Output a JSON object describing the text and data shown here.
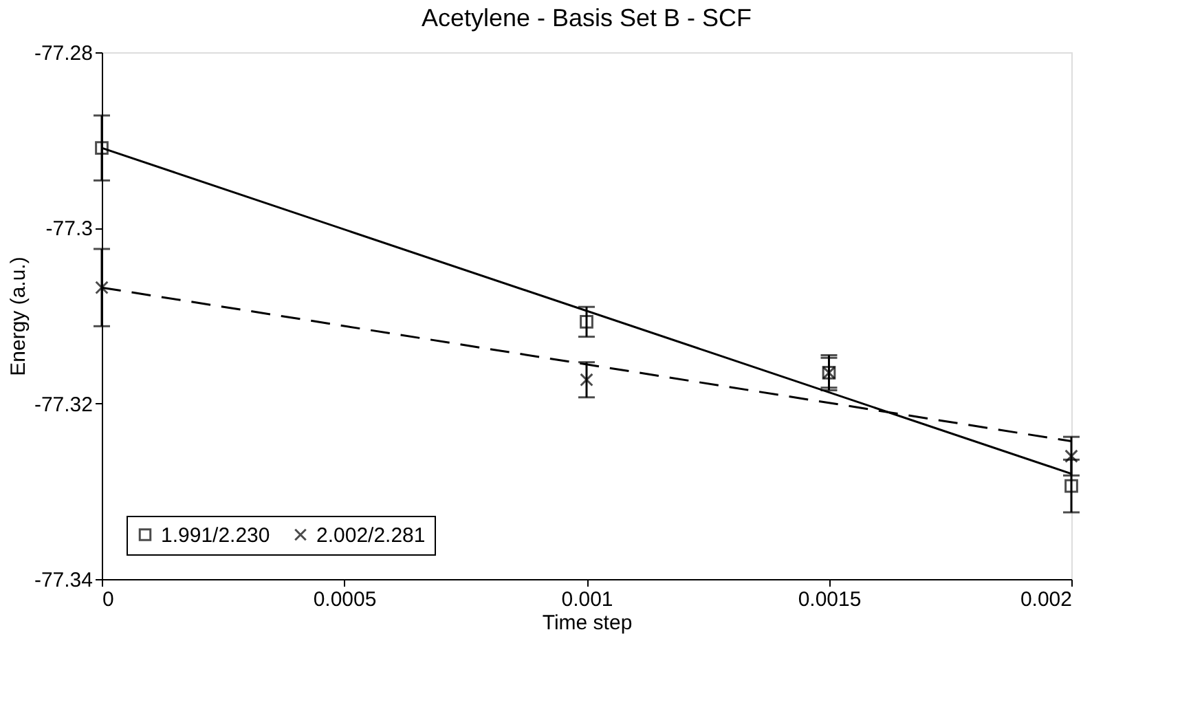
{
  "chart_data": {
    "type": "scatter",
    "title": "Acetylene - Basis Set B - SCF",
    "xlabel": "Time step",
    "ylabel": "Energy (a.u.)",
    "xlim": [
      0,
      0.002
    ],
    "xticks": [
      0,
      0.0005,
      0.001,
      0.0015,
      0.002
    ],
    "ylim": [
      -77.34,
      -77.28
    ],
    "yticks": [
      -77.34,
      -77.32,
      -77.3,
      -77.28
    ],
    "grid": false,
    "legend": "bottom left",
    "series": [
      {
        "name": "1.991/2.230",
        "marker": "square",
        "color": "#000000",
        "x": [
          0,
          0.001,
          0.0015,
          0.002
        ],
        "values": [
          -77.2909,
          -77.3107,
          -77.3165,
          -77.3294
        ],
        "errors": [
          0.0037,
          0.0017,
          0.002,
          0.003
        ]
      },
      {
        "name": "2.002/2.281",
        "marker": "cross",
        "color": "#000000",
        "x": [
          0,
          0.001,
          0.0015,
          0.002
        ],
        "values": [
          -77.3068,
          -77.3173,
          -77.3165,
          -77.326
        ],
        "errors": [
          0.0044,
          0.002,
          0.0017,
          0.0022
        ]
      },
      {
        "type": "line",
        "line_style": "solid",
        "marker": "none",
        "color": "#000000",
        "x": [
          0,
          0.002
        ],
        "values": [
          -77.2909,
          -77.328
        ]
      },
      {
        "type": "line",
        "line_style": "dashed",
        "marker": "none",
        "color": "#000000",
        "x": [
          0,
          0.002
        ],
        "values": [
          -77.3068,
          -77.3243
        ]
      }
    ]
  }
}
